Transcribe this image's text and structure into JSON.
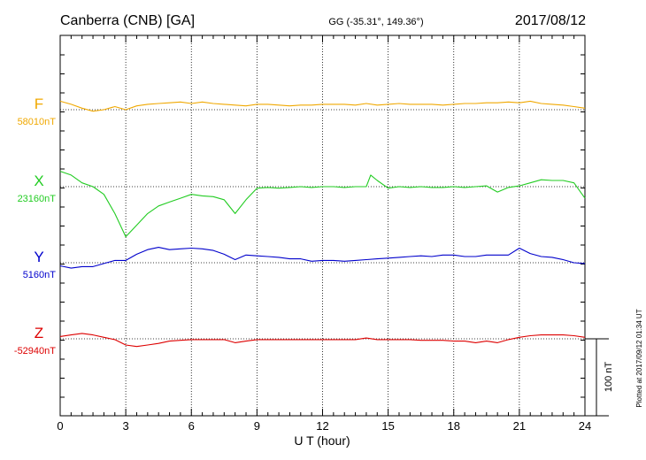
{
  "header": {
    "station": "Canberra (CNB)  [GA]",
    "coords": "GG (-35.31°, 149.36°)",
    "date": "2017/08/12"
  },
  "plotted_note": "Plotted at 2017/09/12 01:34 UT",
  "scale_label": "100 nT",
  "chart_data": {
    "type": "line",
    "xlabel": "U T (hour)",
    "xlim": [
      0,
      24
    ],
    "xticks": [
      "0",
      "3",
      "6",
      "9",
      "12",
      "15",
      "18",
      "21",
      "24"
    ],
    "grid": true,
    "series": [
      {
        "name": "F",
        "baseline": "58010nT",
        "baseline_value": 58010,
        "color": "#f0a800",
        "x": [
          0,
          0.5,
          1,
          1.5,
          2,
          2.5,
          3,
          3.5,
          4,
          4.5,
          5,
          5.5,
          6,
          6.5,
          7,
          7.5,
          8,
          8.5,
          9,
          9.5,
          10,
          10.5,
          11,
          11.5,
          12,
          12.5,
          13,
          13.5,
          14,
          14.5,
          15,
          15.5,
          16,
          16.5,
          17,
          17.5,
          18,
          18.5,
          19,
          19.5,
          20,
          20.5,
          21,
          21.5,
          22,
          22.5,
          23,
          23.5,
          24
        ],
        "values": [
          58021,
          58017,
          58012,
          58008,
          58010,
          58014,
          58010,
          58015,
          58017,
          58018,
          58019,
          58020,
          58018,
          58020,
          58018,
          58017,
          58016,
          58015,
          58017,
          58017,
          58016,
          58015,
          58016,
          58016,
          58017,
          58017,
          58017,
          58016,
          58018,
          58016,
          58017,
          58018,
          58017,
          58017,
          58017,
          58016,
          58017,
          58018,
          58018,
          58019,
          58019,
          58020,
          58019,
          58021,
          58018,
          58017,
          58016,
          58014,
          58012
        ]
      },
      {
        "name": "X",
        "baseline": "23160nT",
        "baseline_value": 23160,
        "color": "#22cc22",
        "x": [
          0,
          0.5,
          1,
          1.5,
          2,
          2.5,
          3,
          3.5,
          4,
          4.5,
          5,
          5.5,
          6,
          6.5,
          7,
          7.5,
          8,
          8.5,
          9,
          9.5,
          10,
          10.5,
          11,
          11.5,
          12,
          12.5,
          13,
          13.5,
          14,
          14.2,
          14.5,
          15,
          15.5,
          16,
          16.5,
          17,
          17.5,
          18,
          18.5,
          19,
          19.5,
          20,
          20.5,
          21,
          21.5,
          22,
          22.5,
          23,
          23.5,
          24
        ],
        "values": [
          23180,
          23175,
          23165,
          23160,
          23150,
          23125,
          23095,
          23110,
          23125,
          23135,
          23140,
          23145,
          23150,
          23148,
          23147,
          23143,
          23125,
          23143,
          23158,
          23159,
          23158,
          23159,
          23160,
          23159,
          23160,
          23160,
          23159,
          23160,
          23160,
          23175,
          23168,
          23158,
          23160,
          23159,
          23160,
          23159,
          23159,
          23160,
          23159,
          23160,
          23161,
          23153,
          23159,
          23161,
          23165,
          23169,
          23168,
          23168,
          23165,
          23145
        ]
      },
      {
        "name": "Y",
        "baseline": "5160nT",
        "baseline_value": 5160,
        "color": "#0000cc",
        "x": [
          0,
          0.5,
          1,
          1.5,
          2,
          2.5,
          3,
          3.5,
          4,
          4.5,
          5,
          5.5,
          6,
          6.5,
          7,
          7.5,
          8,
          8.5,
          9,
          9.5,
          10,
          10.5,
          11,
          11.5,
          12,
          12.5,
          13,
          13.5,
          14,
          14.5,
          15,
          15.5,
          16,
          16.5,
          17,
          17.5,
          18,
          18.5,
          19,
          19.5,
          20,
          20.5,
          21,
          21.5,
          22,
          22.5,
          23,
          23.5,
          24
        ],
        "values": [
          5156,
          5153,
          5155,
          5155,
          5159,
          5163,
          5163,
          5171,
          5177,
          5180,
          5177,
          5178,
          5179,
          5178,
          5176,
          5171,
          5164,
          5170,
          5169,
          5168,
          5167,
          5165,
          5165,
          5162,
          5163,
          5163,
          5162,
          5163,
          5164,
          5165,
          5166,
          5167,
          5168,
          5169,
          5168,
          5170,
          5170,
          5168,
          5168,
          5170,
          5170,
          5170,
          5179,
          5172,
          5168,
          5167,
          5164,
          5160,
          5159
        ]
      },
      {
        "name": "Z",
        "baseline": "-52940nT",
        "baseline_value": -52940,
        "color": "#dd0000",
        "x": [
          0,
          0.5,
          1,
          1.5,
          2,
          2.5,
          3,
          3.5,
          4,
          4.5,
          5,
          5.5,
          6,
          6.5,
          7,
          7.5,
          8,
          8.5,
          9,
          9.5,
          10,
          10.5,
          11,
          11.5,
          12,
          12.5,
          13,
          13.5,
          14,
          14.5,
          15,
          15.5,
          16,
          16.5,
          17,
          17.5,
          18,
          18.5,
          19,
          19.5,
          20,
          20.5,
          21,
          21.5,
          22,
          22.5,
          23,
          23.5,
          24
        ],
        "values": [
          -52937,
          -52935,
          -52933,
          -52935,
          -52938,
          -52941,
          -52948,
          -52950,
          -52948,
          -52946,
          -52943,
          -52942,
          -52941,
          -52941,
          -52941,
          -52941,
          -52945,
          -52943,
          -52941,
          -52941,
          -52941,
          -52941,
          -52941,
          -52941,
          -52941,
          -52941,
          -52941,
          -52941,
          -52939,
          -52941,
          -52941,
          -52941,
          -52941,
          -52942,
          -52942,
          -52942,
          -52943,
          -52943,
          -52945,
          -52943,
          -52945,
          -52941,
          -52938,
          -52936,
          -52935,
          -52935,
          -52935,
          -52936,
          -52938
        ]
      }
    ]
  }
}
